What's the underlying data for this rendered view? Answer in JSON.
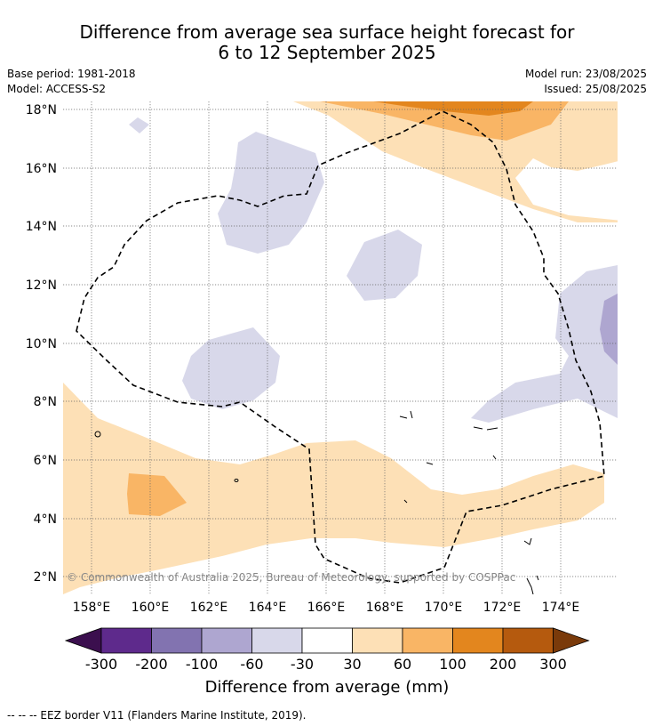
{
  "title_line1": "Difference from average sea surface height forecast for",
  "title_line2": "6 to 12 September 2025",
  "base_period": "Base period: 1981-2018",
  "model": "Model: ACCESS-S2",
  "model_run": "Model run: 23/08/2025",
  "issued": "Issued: 25/08/2025",
  "copyright": "© Commonwealth of Australia 2025, Bureau of Meteorology, supported by COSPPac",
  "lon_ticks": [
    "158°E",
    "160°E",
    "162°E",
    "164°E",
    "166°E",
    "168°E",
    "170°E",
    "172°E",
    "174°E"
  ],
  "lat_ticks": [
    "18°N",
    "16°N",
    "14°N",
    "12°N",
    "10°N",
    "8°N",
    "6°N",
    "4°N",
    "2°N"
  ],
  "colorbar": {
    "title": "Difference from average (mm)",
    "labels": [
      "-300",
      "-200",
      "-100",
      "-60",
      "-30",
      "30",
      "60",
      "100",
      "200",
      "300"
    ],
    "colors": [
      "#3b0f4e",
      "#5e2a8c",
      "#8273b0",
      "#aea6d0",
      "#d8d8ea",
      "#ffffff",
      "#fde0b6",
      "#f9b565",
      "#e3861e",
      "#b55a0e",
      "#7a3a0a"
    ]
  },
  "legend_footnote": "-- -- -- EEZ border V11 (Flanders Marine Institute, 2019)."
}
